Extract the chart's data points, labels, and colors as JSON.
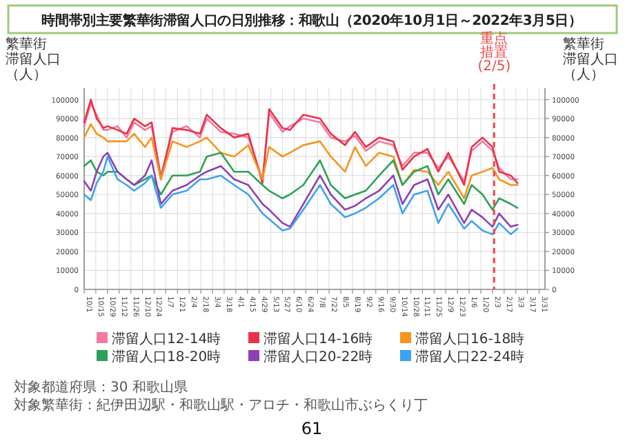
{
  "chart_data": {
    "type": "line",
    "title": "時間帯別主要繁華街滞留人口の日別推移：和歌山（2020年10月1日～2022年3月5日）",
    "ylabel": "繁華街滞留人口（人）",
    "y2label": "繁華街滞留人口（人）",
    "x": [
      "2020-10-01",
      "2020-10-09",
      "2020-10-16",
      "2020-10-24",
      "2020-10-29",
      "2020-11-10",
      "2020-11-21",
      "2020-11-30",
      "2020-12-13",
      "2020-12-21",
      "2021-01-01",
      "2021-01-15",
      "2021-02-01",
      "2021-02-17",
      "2021-02-25",
      "2021-03-14",
      "2021-03-30",
      "2021-04-16",
      "2021-05-03",
      "2021-05-11",
      "2021-05-27",
      "2021-06-05",
      "2021-06-21",
      "2021-07-11",
      "2021-07-24",
      "2021-08-10",
      "2021-08-22",
      "2021-09-04",
      "2021-09-20",
      "2021-10-07",
      "2021-10-18",
      "2021-11-01",
      "2021-11-17",
      "2021-11-30",
      "2021-12-12",
      "2021-12-31",
      "2022-01-09",
      "2022-01-22",
      "2022-02-03",
      "2022-02-11",
      "2022-02-25",
      "2022-03-05"
    ],
    "xlim": [
      "2020-10-01",
      "2022-04-07"
    ],
    "xticks": [
      {
        "value": "2020-10-01",
        "label": "10/1"
      },
      {
        "value": "2020-10-15",
        "label": "10/15"
      },
      {
        "value": "2020-10-29",
        "label": "10/29"
      },
      {
        "value": "2020-11-12",
        "label": "11/12"
      },
      {
        "value": "2020-11-26",
        "label": "11/26"
      },
      {
        "value": "2020-12-10",
        "label": "12/10"
      },
      {
        "value": "2020-12-24",
        "label": "12/24"
      },
      {
        "value": "2021-01-07",
        "label": "1/7"
      },
      {
        "value": "2021-01-21",
        "label": "1/21"
      },
      {
        "value": "2021-02-04",
        "label": "2/4"
      },
      {
        "value": "2021-02-18",
        "label": "2/18"
      },
      {
        "value": "2021-03-04",
        "label": "3/4"
      },
      {
        "value": "2021-03-18",
        "label": "3/18"
      },
      {
        "value": "2021-04-01",
        "label": "4/1"
      },
      {
        "value": "2021-04-15",
        "label": "4/15"
      },
      {
        "value": "2021-04-29",
        "label": "4/29"
      },
      {
        "value": "2021-05-13",
        "label": "5/13"
      },
      {
        "value": "2021-05-27",
        "label": "5/27"
      },
      {
        "value": "2021-06-10",
        "label": "6/10"
      },
      {
        "value": "2021-06-24",
        "label": "6/24"
      },
      {
        "value": "2021-07-08",
        "label": "7/8"
      },
      {
        "value": "2021-07-22",
        "label": "7/22"
      },
      {
        "value": "2021-08-05",
        "label": "8/5"
      },
      {
        "value": "2021-08-19",
        "label": "8/19"
      },
      {
        "value": "2021-09-02",
        "label": "9/2"
      },
      {
        "value": "2021-09-16",
        "label": "9/16"
      },
      {
        "value": "2021-09-30",
        "label": "9/30"
      },
      {
        "value": "2021-10-14",
        "label": "10/14"
      },
      {
        "value": "2021-10-28",
        "label": "10/28"
      },
      {
        "value": "2021-11-11",
        "label": "11/11"
      },
      {
        "value": "2021-11-25",
        "label": "11/25"
      },
      {
        "value": "2021-12-09",
        "label": "12/9"
      },
      {
        "value": "2021-12-23",
        "label": "12/23"
      },
      {
        "value": "2022-01-06",
        "label": "1/6"
      },
      {
        "value": "2022-01-20",
        "label": "1/20"
      },
      {
        "value": "2022-02-03",
        "label": "2/3"
      },
      {
        "value": "2022-02-17",
        "label": "2/17"
      },
      {
        "value": "2022-03-03",
        "label": "3/3"
      },
      {
        "value": "2022-03-17",
        "label": "3/17"
      },
      {
        "value": "2022-03-31",
        "label": "3/31"
      }
    ],
    "ylim": [
      0,
      106000
    ],
    "yticks": [
      0,
      10000,
      20000,
      30000,
      40000,
      50000,
      60000,
      70000,
      80000,
      90000,
      100000
    ],
    "y2lim": [
      0,
      106000
    ],
    "y2ticks": [
      0,
      10000,
      20000,
      30000,
      40000,
      50000,
      60000,
      70000,
      80000,
      90000,
      100000
    ],
    "grid": true,
    "legend": "bottom",
    "marker": "none",
    "line_style": "solid",
    "ref_lines": [
      {
        "axis": "x",
        "value": "2022-02-05",
        "label": "重点措置(2/5)",
        "color": "#f04848",
        "line_style": "dashed"
      }
    ],
    "annotations": [
      "対象都道府県：30 和歌山県",
      "対象繁華街：紀伊田辺駅・和歌山駅・アロチ・和歌山市ぶらくり丁",
      "61"
    ],
    "series": [
      {
        "name": "滞留人口12-14時",
        "color": "#f27aa0",
        "values": [
          86000,
          98000,
          92000,
          84000,
          84000,
          86000,
          80000,
          88000,
          84000,
          86000,
          60000,
          83000,
          86000,
          80000,
          90000,
          83000,
          82000,
          80000,
          58000,
          93000,
          83000,
          86000,
          90000,
          88000,
          80000,
          78000,
          81000,
          73000,
          78000,
          76000,
          65000,
          72000,
          72000,
          64000,
          70000,
          57000,
          73000,
          78000,
          73000,
          64000,
          58000,
          58000
        ]
      },
      {
        "name": "滞留人口14-16時",
        "color": "#e8334a",
        "values": [
          88000,
          100000,
          90000,
          85000,
          86000,
          84000,
          82000,
          90000,
          86000,
          88000,
          58000,
          85000,
          84000,
          82000,
          92000,
          85000,
          80000,
          82000,
          56000,
          95000,
          85000,
          84000,
          92000,
          90000,
          82000,
          76000,
          83000,
          75000,
          80000,
          78000,
          63000,
          70000,
          74000,
          62000,
          72000,
          55000,
          75000,
          80000,
          75000,
          62000,
          60000,
          56000
        ]
      },
      {
        "name": "滞留人口16-18時",
        "color": "#f7941d",
        "values": [
          80000,
          87000,
          82000,
          80000,
          78000,
          78000,
          78000,
          82000,
          75000,
          80000,
          58000,
          78000,
          75000,
          78000,
          80000,
          72000,
          70000,
          76000,
          58000,
          75000,
          70000,
          72000,
          76000,
          78000,
          70000,
          62000,
          75000,
          65000,
          72000,
          70000,
          55000,
          63000,
          62000,
          55000,
          62000,
          48000,
          60000,
          62000,
          64000,
          58000,
          55000,
          55000
        ]
      },
      {
        "name": "滞留人口18-20時",
        "color": "#2fa05a",
        "values": [
          65000,
          68000,
          62000,
          60000,
          62000,
          62000,
          58000,
          55000,
          58000,
          60000,
          50000,
          60000,
          60000,
          62000,
          70000,
          72000,
          62000,
          62000,
          55000,
          52000,
          48000,
          50000,
          55000,
          68000,
          55000,
          48000,
          50000,
          52000,
          60000,
          68000,
          55000,
          62000,
          65000,
          50000,
          58000,
          45000,
          55000,
          50000,
          42000,
          48000,
          45000,
          43000
        ]
      },
      {
        "name": "滞留人口20-22時",
        "color": "#8e3fb5",
        "values": [
          57000,
          52000,
          62000,
          70000,
          72000,
          62000,
          58000,
          55000,
          60000,
          68000,
          45000,
          52000,
          55000,
          60000,
          62000,
          65000,
          58000,
          55000,
          45000,
          42000,
          35000,
          33000,
          45000,
          60000,
          50000,
          42000,
          44000,
          48000,
          52000,
          60000,
          45000,
          55000,
          58000,
          42000,
          50000,
          35000,
          42000,
          38000,
          33000,
          40000,
          33000,
          34000
        ]
      },
      {
        "name": "滞留人口22-24時",
        "color": "#3fa2f0",
        "values": [
          50000,
          47000,
          56000,
          62000,
          70000,
          58000,
          55000,
          52000,
          56000,
          60000,
          43000,
          50000,
          52000,
          58000,
          58000,
          60000,
          55000,
          50000,
          40000,
          37000,
          31000,
          32000,
          42000,
          55000,
          45000,
          38000,
          40000,
          43000,
          48000,
          55000,
          40000,
          50000,
          52000,
          35000,
          45000,
          32000,
          36000,
          31000,
          29000,
          35000,
          29000,
          32000
        ]
      }
    ]
  }
}
